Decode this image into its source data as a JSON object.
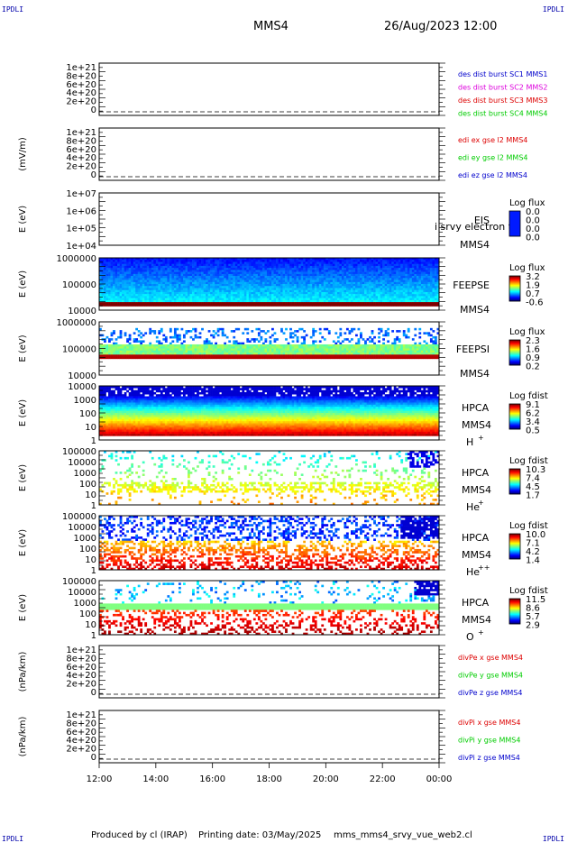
{
  "header": {
    "corner_label": "IPDLI",
    "spacecraft": "MMS4",
    "datetime": "26/Aug/2023 12:00"
  },
  "footer": {
    "produced_by": "Produced by cl (IRAP)",
    "printing_date": "Printing date: 03/May/2025",
    "script": "mms_mms4_srvy_vue_web2.cl"
  },
  "time_axis": [
    "12:00",
    "14:00",
    "16:00",
    "18:00",
    "20:00",
    "22:00",
    "00:00"
  ],
  "colors": {
    "red": "#dd0000",
    "magenta": "#dd00dd",
    "green": "#00cc00",
    "blue": "#0000cc"
  },
  "chart_data": [
    {
      "type": "line",
      "id": "des_dist",
      "yticks": [
        "1e+21",
        "8e+20",
        "6e+20",
        "4e+20",
        "2e+20",
        "0"
      ],
      "legend": [
        {
          "label": "des dist burst SC1 MMS1",
          "color": "#0000cc"
        },
        {
          "label": "des dist burst SC2 MMS2",
          "color": "#dd00dd"
        },
        {
          "label": "des dist burst SC3 MMS3",
          "color": "#dd0000"
        },
        {
          "label": "des dist burst SC4 MMS4",
          "color": "#00cc00"
        }
      ]
    },
    {
      "type": "line",
      "id": "edi_e",
      "ylabel": "(mV/m)",
      "yticks": [
        "1e+21",
        "8e+20",
        "6e+20",
        "4e+20",
        "2e+20",
        "0"
      ],
      "legend": [
        {
          "label": "edi ex gse l2 MMS4",
          "color": "#dd0000"
        },
        {
          "label": "edi ey gse l2 MMS4",
          "color": "#00cc00"
        },
        {
          "label": "edi ez gse l2 MMS4",
          "color": "#0000cc"
        }
      ]
    },
    {
      "type": "heatmap",
      "id": "eis",
      "ylabel": "E (eV)",
      "yticks": [
        "1e+07",
        "1e+06",
        "1e+05",
        "1e+04"
      ],
      "instrument": "EIS",
      "sc": "MMS4",
      "overlap_text": "i srvy electron to",
      "cbar_title": "Log flux",
      "cbar_ticks": [
        "0.0",
        "0.0",
        "0.0",
        "0.0"
      ],
      "empty": true
    },
    {
      "type": "heatmap",
      "id": "feepse",
      "ylabel": "E (eV)",
      "yticks": [
        "1000000",
        "100000",
        "10000"
      ],
      "instrument": "FEEPSE",
      "sc": "MMS4",
      "cbar_title": "Log flux",
      "cbar_ticks": [
        "3.2",
        "1.9",
        "0.7",
        "-0.6"
      ]
    },
    {
      "type": "heatmap",
      "id": "feepsi",
      "ylabel": "E (eV)",
      "yticks": [
        "1000000",
        "100000",
        "10000"
      ],
      "instrument": "FEEPSI",
      "sc": "MMS4",
      "cbar_title": "Log flux",
      "cbar_ticks": [
        "2.3",
        "1.6",
        "0.9",
        "0.2"
      ]
    },
    {
      "type": "heatmap",
      "id": "hpca_h",
      "ylabel": "E (eV)",
      "yticks": [
        "10000",
        "1000",
        "100",
        "10",
        "1"
      ],
      "instrument": "HPCA",
      "sc": "MMS4",
      "species": "H",
      "charge": "+",
      "cbar_title": "Log fdist",
      "cbar_ticks": [
        "9.1",
        "6.2",
        "3.4",
        "0.5"
      ]
    },
    {
      "type": "heatmap",
      "id": "hpca_he",
      "ylabel": "E (eV)",
      "yticks": [
        "100000",
        "10000",
        "1000",
        "100",
        "10",
        "1"
      ],
      "instrument": "HPCA",
      "sc": "MMS4",
      "species": "He",
      "charge": "+",
      "cbar_title": "Log fdist",
      "cbar_ticks": [
        "10.3",
        "7.4",
        "4.5",
        "1.7"
      ]
    },
    {
      "type": "heatmap",
      "id": "hpca_he2",
      "ylabel": "E (eV)",
      "yticks": [
        "100000",
        "10000",
        "1000",
        "100",
        "10",
        "1"
      ],
      "instrument": "HPCA",
      "sc": "MMS4",
      "species": "He",
      "charge": "++",
      "cbar_title": "Log fdist",
      "cbar_ticks": [
        "10.0",
        "7.1",
        "4.2",
        "1.4"
      ]
    },
    {
      "type": "heatmap",
      "id": "hpca_o",
      "ylabel": "E (eV)",
      "yticks": [
        "100000",
        "10000",
        "1000",
        "100",
        "10",
        "1"
      ],
      "instrument": "HPCA",
      "sc": "MMS4",
      "species": "O",
      "charge": "+",
      "cbar_title": "Log fdist",
      "cbar_ticks": [
        "11.5",
        "8.6",
        "5.7",
        "2.9"
      ]
    },
    {
      "type": "line",
      "id": "divpe",
      "ylabel": "(nPa/km)",
      "yticks": [
        "1e+21",
        "8e+20",
        "6e+20",
        "4e+20",
        "2e+20",
        "0"
      ],
      "legend": [
        {
          "label": "divPe x gse MMS4",
          "color": "#dd0000"
        },
        {
          "label": "divPe y gse MMS4",
          "color": "#00cc00"
        },
        {
          "label": "divPe z gse MMS4",
          "color": "#0000cc"
        }
      ]
    },
    {
      "type": "line",
      "id": "divpi",
      "ylabel": "(nPa/km)",
      "yticks": [
        "1e+21",
        "8e+20",
        "6e+20",
        "4e+20",
        "2e+20",
        "0"
      ],
      "legend": [
        {
          "label": "divPi x gse MMS4",
          "color": "#dd0000"
        },
        {
          "label": "divPi y gse MMS4",
          "color": "#00cc00"
        },
        {
          "label": "divPi z gse MMS4",
          "color": "#0000cc"
        }
      ]
    }
  ]
}
